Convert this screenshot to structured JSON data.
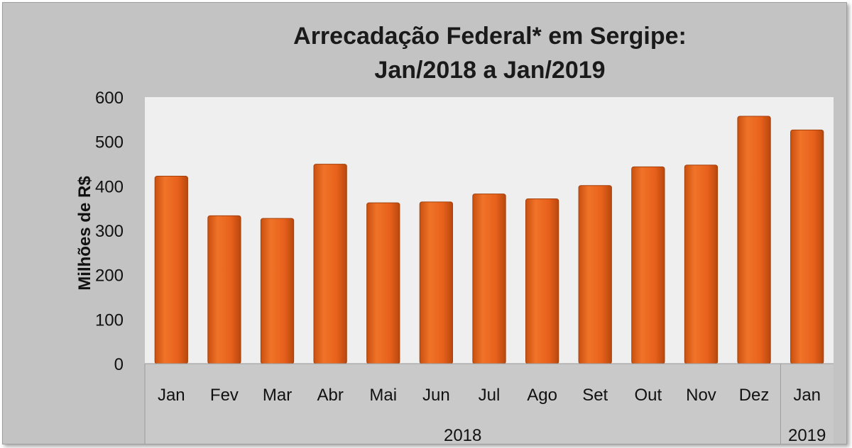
{
  "chart_data": {
    "type": "bar",
    "title": [
      "Arrecadação Federal* em Sergipe:",
      "Jan/2018 a Jan/2019"
    ],
    "ylabel": "Milhões de R$",
    "xlabel": "",
    "ylim": [
      0,
      600
    ],
    "yticks": [
      0,
      100,
      200,
      300,
      400,
      500,
      600
    ],
    "categories": [
      "Jan",
      "Fev",
      "Mar",
      "Abr",
      "Mai",
      "Jun",
      "Jul",
      "Ago",
      "Set",
      "Out",
      "Nov",
      "Dez",
      "Jan"
    ],
    "groups": [
      {
        "label": "2018",
        "count": 12
      },
      {
        "label": "2019",
        "count": 1
      }
    ],
    "values": [
      422,
      333,
      327,
      449,
      362,
      364,
      382,
      371,
      401,
      443,
      447,
      557,
      526
    ],
    "grid": false,
    "legend": "none",
    "colors": {
      "bar_fill": "#e8611c",
      "bar_edge": "#a3400c",
      "plot_bg": "#efefef",
      "frame_bg": "#c3c3c3"
    }
  }
}
